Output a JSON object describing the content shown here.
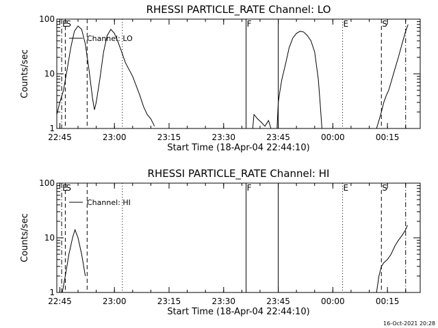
{
  "chart_data": [
    {
      "type": "line",
      "title": "RHESSI PARTICLE_RATE Channel: LO",
      "xlabel": "Start Time (18-Apr-04 22:44:10)",
      "ylabel": "Counts/sec",
      "yscale": "log",
      "ylim": [
        1,
        100
      ],
      "xlim": [
        "22:44:10",
        "00:24:00"
      ],
      "xticks": [
        "22:45",
        "23:00",
        "23:15",
        "23:30",
        "23:45",
        "00:00",
        "00:15"
      ],
      "yticks": [
        "1",
        "10",
        "100"
      ],
      "legend": "Channel: LO",
      "legend_position": "top-left",
      "events": [
        {
          "label": "E",
          "time": "22:45:30",
          "style": "dash-dot"
        },
        {
          "label": "S",
          "time": "22:46:30",
          "style": "dashed"
        },
        {
          "label": "",
          "time": "22:52:30",
          "style": "dashed"
        },
        {
          "label": "",
          "time": "23:02:10",
          "style": "dotted"
        },
        {
          "label": "F",
          "time": "23:36:10",
          "style": "solid"
        },
        {
          "label": "",
          "time": "23:45:00",
          "style": "solid"
        },
        {
          "label": "E",
          "time": "00:02:40",
          "style": "dotted"
        },
        {
          "label": "S",
          "time": "00:13:20",
          "style": "dashed"
        },
        {
          "label": "",
          "time": "00:20:00",
          "style": "dash-dot"
        }
      ],
      "segments": [
        [
          [
            "22:44:10",
            1.8
          ],
          [
            "22:45:00",
            3
          ],
          [
            "22:46:00",
            5
          ],
          [
            "22:47:00",
            12
          ],
          [
            "22:48:00",
            30
          ],
          [
            "22:49:00",
            60
          ],
          [
            "22:50:00",
            75
          ],
          [
            "22:51:00",
            65
          ],
          [
            "22:52:00",
            35
          ],
          [
            "22:53:00",
            12
          ],
          [
            "22:54:00",
            3.5
          ],
          [
            "22:54:30",
            2.2
          ],
          [
            "22:55:00",
            3
          ],
          [
            "22:56:00",
            8
          ],
          [
            "22:57:00",
            25
          ],
          [
            "22:58:00",
            50
          ],
          [
            "22:59:00",
            65
          ],
          [
            "23:00:00",
            55
          ],
          [
            "23:01:00",
            38
          ],
          [
            "23:02:00",
            25
          ],
          [
            "23:03:00",
            16
          ],
          [
            "23:04:00",
            12
          ],
          [
            "23:05:00",
            9
          ],
          [
            "23:06:00",
            6
          ],
          [
            "23:07:00",
            4
          ],
          [
            "23:08:00",
            2.5
          ],
          [
            "23:09:00",
            1.8
          ],
          [
            "23:10:00",
            1.5
          ],
          [
            "23:11:00",
            1.1
          ]
        ],
        [
          [
            "23:38:00",
            1
          ],
          [
            "23:38:20",
            1.8
          ],
          [
            "23:39:20",
            1.5
          ],
          [
            "23:40:20",
            1.3
          ],
          [
            "23:41:20",
            1.1
          ],
          [
            "23:42:20",
            1.4
          ],
          [
            "23:43:00",
            1
          ]
        ],
        [
          [
            "23:44:40",
            1
          ],
          [
            "23:45:00",
            3
          ],
          [
            "23:45:30",
            5
          ],
          [
            "23:46:00",
            8
          ],
          [
            "23:47:00",
            15
          ],
          [
            "23:48:00",
            30
          ],
          [
            "23:49:00",
            45
          ],
          [
            "23:50:00",
            55
          ],
          [
            "23:51:00",
            60
          ],
          [
            "23:52:00",
            58
          ],
          [
            "23:53:00",
            50
          ],
          [
            "23:54:00",
            40
          ],
          [
            "23:55:00",
            25
          ],
          [
            "23:56:00",
            8
          ],
          [
            "23:56:30",
            3
          ],
          [
            "23:57:00",
            1
          ]
        ],
        [
          [
            "00:12:00",
            1
          ],
          [
            "00:12:40",
            1.4
          ],
          [
            "00:13:20",
            2
          ],
          [
            "00:14:00",
            3
          ],
          [
            "00:14:40",
            4
          ],
          [
            "00:15:20",
            5
          ],
          [
            "00:16:00",
            7
          ],
          [
            "00:17:00",
            12
          ],
          [
            "00:18:00",
            20
          ],
          [
            "00:19:00",
            35
          ],
          [
            "00:20:00",
            60
          ],
          [
            "00:20:40",
            80
          ]
        ]
      ]
    },
    {
      "type": "line",
      "title": "RHESSI PARTICLE_RATE Channel: HI",
      "xlabel": "Start Time (18-Apr-04 22:44:10)",
      "ylabel": "Counts/sec",
      "yscale": "log",
      "ylim": [
        1,
        100
      ],
      "xlim": [
        "22:44:10",
        "00:24:00"
      ],
      "xticks": [
        "22:45",
        "23:00",
        "23:15",
        "23:30",
        "23:45",
        "00:00",
        "00:15"
      ],
      "yticks": [
        "1",
        "10",
        "100"
      ],
      "legend": "Channel: HI",
      "legend_position": "top-left",
      "events": [
        {
          "label": "E",
          "time": "22:45:30",
          "style": "dash-dot"
        },
        {
          "label": "S",
          "time": "22:46:30",
          "style": "dashed"
        },
        {
          "label": "",
          "time": "22:52:30",
          "style": "dashed"
        },
        {
          "label": "",
          "time": "23:02:10",
          "style": "dotted"
        },
        {
          "label": "F",
          "time": "23:36:10",
          "style": "solid"
        },
        {
          "label": "",
          "time": "23:45:00",
          "style": "solid"
        },
        {
          "label": "E",
          "time": "00:02:40",
          "style": "dotted"
        },
        {
          "label": "S",
          "time": "00:13:20",
          "style": "dashed"
        },
        {
          "label": "",
          "time": "00:20:00",
          "style": "dash-dot"
        }
      ],
      "segments": [
        [
          [
            "22:45:40",
            1
          ],
          [
            "22:46:30",
            2
          ],
          [
            "22:47:30",
            5
          ],
          [
            "22:48:30",
            10
          ],
          [
            "22:49:10",
            14
          ],
          [
            "22:50:00",
            10
          ],
          [
            "22:51:00",
            5
          ],
          [
            "22:52:00",
            2
          ]
        ],
        [
          [
            "00:12:00",
            1
          ],
          [
            "00:12:40",
            2
          ],
          [
            "00:13:20",
            3
          ],
          [
            "00:14:00",
            3.5
          ],
          [
            "00:15:00",
            4
          ],
          [
            "00:16:00",
            5
          ],
          [
            "00:17:00",
            7
          ],
          [
            "00:18:00",
            9
          ],
          [
            "00:19:00",
            11
          ],
          [
            "00:20:00",
            14
          ],
          [
            "00:20:30",
            17
          ]
        ]
      ]
    }
  ],
  "footer": {
    "timestamp": "16-Oct-2021 20:28"
  }
}
